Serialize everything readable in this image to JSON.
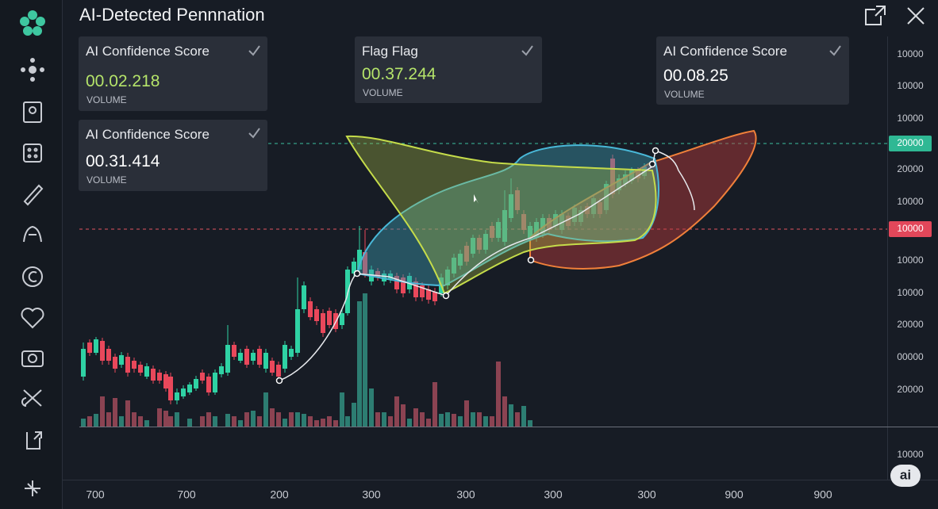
{
  "header": {
    "title": "AI-Detected Pennnation"
  },
  "cards": [
    {
      "title": "AI Confidence Score",
      "value": "00.02.218",
      "label": "VOLUME"
    },
    {
      "title": "AI Confidence Score",
      "value": "00.31.414",
      "label": "VOLUME"
    },
    {
      "title": "Flag Flag",
      "value": "00.37.244",
      "label": "VOLUME"
    },
    {
      "title": "AI Confidence Score",
      "value": "00.08.25",
      "label": "VOLUME"
    }
  ],
  "price_axis": [
    "10000",
    "10000",
    "10000",
    "20000",
    "10000",
    "10000",
    "10000",
    "20000",
    "00000",
    "20000",
    "10000"
  ],
  "support_price": "20000",
  "resistance_price": "10000",
  "time_axis": [
    "700",
    "700",
    "200",
    "300",
    "300",
    "300",
    "300",
    "900",
    "900"
  ],
  "badge": "ai"
}
